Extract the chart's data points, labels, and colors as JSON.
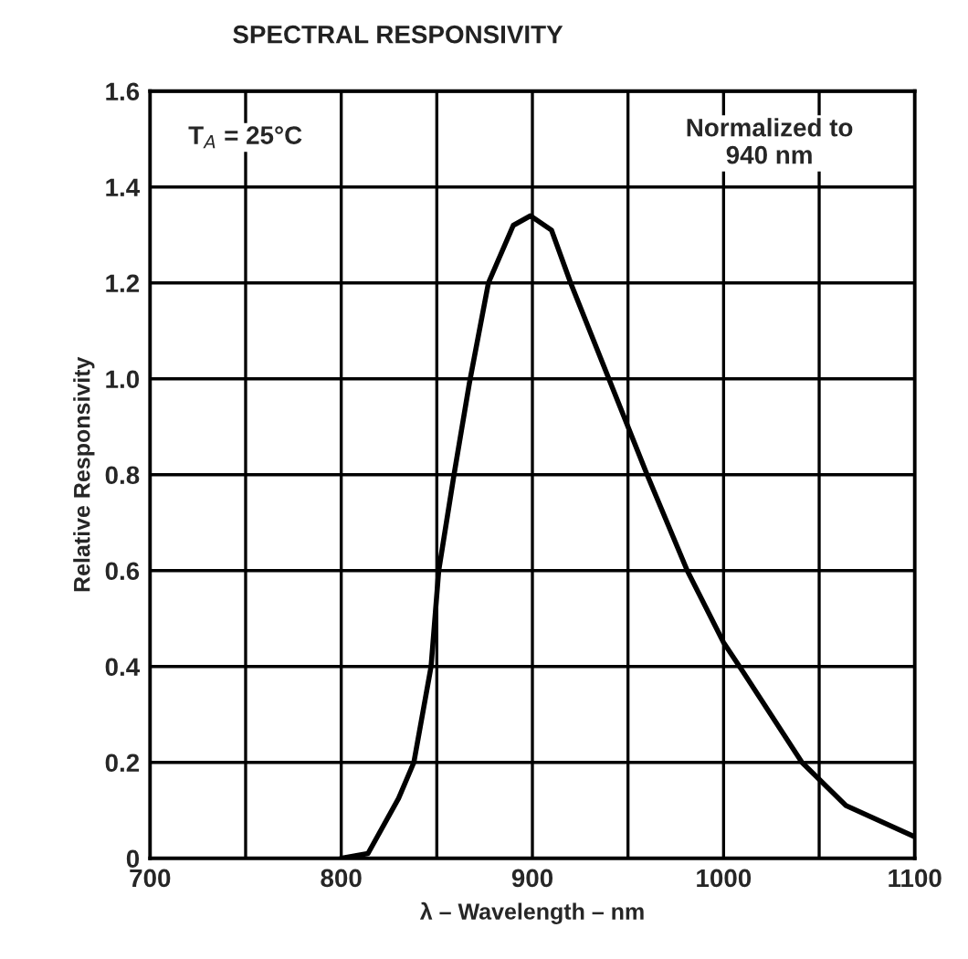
{
  "chart_data": {
    "type": "line",
    "title": "SPECTRAL RESPONSIVITY",
    "xlabel": "λ – Wavelength – nm",
    "ylabel": "Relative Responsivity",
    "annotations": [
      "T$_{A}$ = 25°C",
      "Normalized to\n940 nm"
    ],
    "series": [
      {
        "color": "#000000",
        "x": [
          800,
          814,
          830,
          838,
          847,
          851,
          859,
          867,
          877,
          890,
          899,
          910,
          920,
          946,
          960,
          981,
          1000,
          1010,
          1041,
          1064,
          1100
        ],
        "values": [
          0,
          0.01,
          0.125,
          0.2,
          0.4,
          0.6,
          0.8,
          0.99,
          1.2,
          1.32,
          1.34,
          1.31,
          1.2,
          0.94,
          0.8,
          0.6,
          0.45,
          0.39,
          0.2,
          0.11,
          0.045
        ]
      }
    ],
    "xlim": [
      700,
      1100
    ],
    "ylim": [
      0,
      1.6
    ],
    "xticks": [
      700,
      {
        "value": 750,
        "label": null
      },
      800,
      {
        "value": 850,
        "label": null
      },
      900,
      {
        "value": 950,
        "label": null
      },
      1000,
      {
        "value": 1050,
        "label": null
      },
      1100
    ],
    "yticks": [
      0,
      0.2,
      0.4,
      0.6,
      0.8,
      {
        "value": 1.0,
        "label": "1.0"
      },
      1.2,
      1.4,
      1.6
    ],
    "grid": true,
    "legend": false,
    "marker": "none",
    "line_style": "solid"
  }
}
